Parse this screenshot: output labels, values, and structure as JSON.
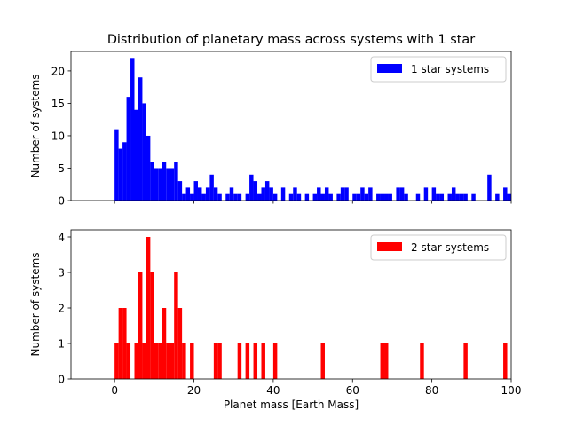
{
  "chart_data": [
    {
      "type": "bar",
      "title": "Distribution of planetary mass across systems with 1 star",
      "xlabel": "",
      "ylabel": "Number of systems",
      "xlim": [
        -11,
        100
      ],
      "ylim": [
        0,
        23
      ],
      "xticks": [
        0,
        20,
        40,
        60,
        80,
        100
      ],
      "yticks": [
        0,
        5,
        10,
        15,
        20
      ],
      "show_xtick_labels": false,
      "legend": {
        "label": "1 star systems",
        "position": "top-right"
      },
      "color": "#0000ff",
      "bin_width": 1,
      "bars": [
        {
          "x": 0,
          "y": 11
        },
        {
          "x": 1,
          "y": 8
        },
        {
          "x": 2,
          "y": 9
        },
        {
          "x": 3,
          "y": 16
        },
        {
          "x": 4,
          "y": 22
        },
        {
          "x": 5,
          "y": 14
        },
        {
          "x": 6,
          "y": 19
        },
        {
          "x": 7,
          "y": 15
        },
        {
          "x": 8,
          "y": 10
        },
        {
          "x": 9,
          "y": 6
        },
        {
          "x": 10,
          "y": 5
        },
        {
          "x": 11,
          "y": 5
        },
        {
          "x": 12,
          "y": 6
        },
        {
          "x": 13,
          "y": 5
        },
        {
          "x": 14,
          "y": 5
        },
        {
          "x": 15,
          "y": 6
        },
        {
          "x": 16,
          "y": 3
        },
        {
          "x": 17,
          "y": 1
        },
        {
          "x": 18,
          "y": 2
        },
        {
          "x": 19,
          "y": 1
        },
        {
          "x": 20,
          "y": 3
        },
        {
          "x": 21,
          "y": 2
        },
        {
          "x": 22,
          "y": 1
        },
        {
          "x": 23,
          "y": 2
        },
        {
          "x": 24,
          "y": 4
        },
        {
          "x": 25,
          "y": 2
        },
        {
          "x": 26,
          "y": 1
        },
        {
          "x": 28,
          "y": 1
        },
        {
          "x": 29,
          "y": 2
        },
        {
          "x": 30,
          "y": 1
        },
        {
          "x": 31,
          "y": 1
        },
        {
          "x": 33,
          "y": 1
        },
        {
          "x": 34,
          "y": 4
        },
        {
          "x": 35,
          "y": 3
        },
        {
          "x": 36,
          "y": 1
        },
        {
          "x": 37,
          "y": 2
        },
        {
          "x": 38,
          "y": 3
        },
        {
          "x": 39,
          "y": 2
        },
        {
          "x": 40,
          "y": 1
        },
        {
          "x": 42,
          "y": 2
        },
        {
          "x": 44,
          "y": 1
        },
        {
          "x": 45,
          "y": 2
        },
        {
          "x": 46,
          "y": 1
        },
        {
          "x": 48,
          "y": 1
        },
        {
          "x": 50,
          "y": 1
        },
        {
          "x": 51,
          "y": 2
        },
        {
          "x": 52,
          "y": 1
        },
        {
          "x": 53,
          "y": 2
        },
        {
          "x": 54,
          "y": 1
        },
        {
          "x": 56,
          "y": 1
        },
        {
          "x": 57,
          "y": 2
        },
        {
          "x": 58,
          "y": 2
        },
        {
          "x": 60,
          "y": 1
        },
        {
          "x": 61,
          "y": 1
        },
        {
          "x": 62,
          "y": 2
        },
        {
          "x": 63,
          "y": 1
        },
        {
          "x": 64,
          "y": 2
        },
        {
          "x": 66,
          "y": 1
        },
        {
          "x": 67,
          "y": 1
        },
        {
          "x": 68,
          "y": 1
        },
        {
          "x": 69,
          "y": 1
        },
        {
          "x": 71,
          "y": 2
        },
        {
          "x": 72,
          "y": 2
        },
        {
          "x": 73,
          "y": 1
        },
        {
          "x": 76,
          "y": 1
        },
        {
          "x": 78,
          "y": 2
        },
        {
          "x": 80,
          "y": 2
        },
        {
          "x": 81,
          "y": 1
        },
        {
          "x": 82,
          "y": 1
        },
        {
          "x": 84,
          "y": 1
        },
        {
          "x": 85,
          "y": 2
        },
        {
          "x": 86,
          "y": 1
        },
        {
          "x": 87,
          "y": 1
        },
        {
          "x": 88,
          "y": 1
        },
        {
          "x": 90,
          "y": 1
        },
        {
          "x": 94,
          "y": 4
        },
        {
          "x": 96,
          "y": 1
        },
        {
          "x": 98,
          "y": 2
        },
        {
          "x": 99,
          "y": 1
        }
      ]
    },
    {
      "type": "bar",
      "title": "",
      "xlabel": "Planet mass [Earth Mass]",
      "ylabel": "Number of systems",
      "xlim": [
        -11,
        100
      ],
      "ylim": [
        0,
        4.2
      ],
      "xticks": [
        0,
        20,
        40,
        60,
        80,
        100
      ],
      "yticks": [
        0,
        1,
        2,
        3,
        4
      ],
      "show_xtick_labels": true,
      "legend": {
        "label": "2 star systems",
        "position": "top-right"
      },
      "color": "#ff0000",
      "bin_width": 1,
      "bars": [
        {
          "x": 0,
          "y": 1
        },
        {
          "x": 1,
          "y": 2
        },
        {
          "x": 2,
          "y": 2
        },
        {
          "x": 3,
          "y": 1
        },
        {
          "x": 5,
          "y": 1
        },
        {
          "x": 6,
          "y": 3
        },
        {
          "x": 7,
          "y": 1
        },
        {
          "x": 8,
          "y": 4
        },
        {
          "x": 9,
          "y": 3
        },
        {
          "x": 10,
          "y": 1
        },
        {
          "x": 11,
          "y": 1
        },
        {
          "x": 12,
          "y": 2
        },
        {
          "x": 13,
          "y": 1
        },
        {
          "x": 14,
          "y": 1
        },
        {
          "x": 15,
          "y": 3
        },
        {
          "x": 16,
          "y": 2
        },
        {
          "x": 17,
          "y": 1
        },
        {
          "x": 19,
          "y": 1
        },
        {
          "x": 25,
          "y": 1
        },
        {
          "x": 26,
          "y": 1
        },
        {
          "x": 31,
          "y": 1
        },
        {
          "x": 33,
          "y": 1
        },
        {
          "x": 35,
          "y": 1
        },
        {
          "x": 37,
          "y": 1
        },
        {
          "x": 40,
          "y": 1
        },
        {
          "x": 52,
          "y": 1
        },
        {
          "x": 67,
          "y": 1
        },
        {
          "x": 68,
          "y": 1
        },
        {
          "x": 77,
          "y": 1
        },
        {
          "x": 88,
          "y": 1
        },
        {
          "x": 98,
          "y": 1
        }
      ]
    }
  ]
}
